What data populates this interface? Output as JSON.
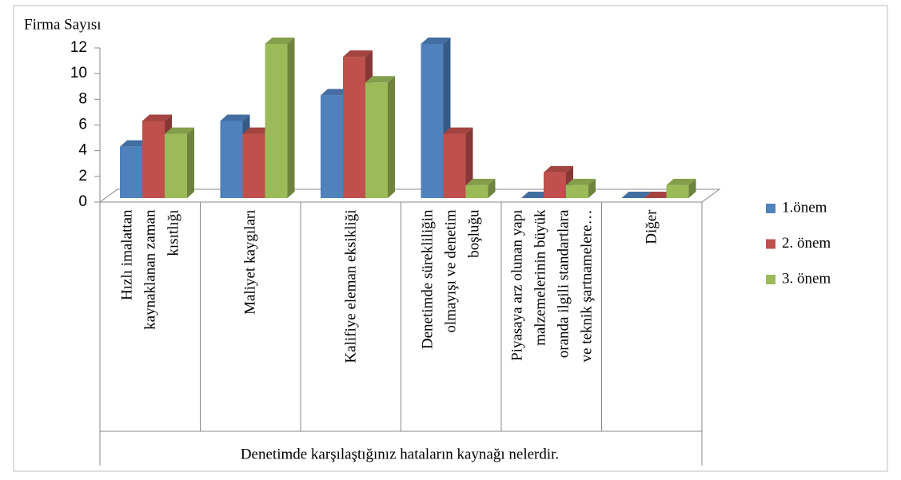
{
  "chart_data": {
    "type": "bar3d",
    "y_axis_title": "Firma Sayısı",
    "x_axis_title": "Denetimde karşılaştığınız hataların kaynağı nelerdir.",
    "categories": [
      "Hızlı imalattan kaynaklanan zaman kısıtlığı",
      "Maliyet kaygıları",
      "Kalifiye eleman eksikliği",
      "Denetimde sürekliliğin olmayışı ve denetim boşluğu",
      "Piyasaya arz olunan yapı malzemelerinin büyük oranda ilgili standartlara ve teknik şartnamelere…",
      "Diğer"
    ],
    "series": [
      {
        "name": "1.önem",
        "color": "#4f81bd",
        "values": [
          4,
          6,
          8,
          12,
          0,
          0
        ]
      },
      {
        "name": "2. önem",
        "color": "#c0504d",
        "values": [
          6,
          5,
          11,
          5,
          2,
          0
        ]
      },
      {
        "name": "3. önem",
        "color": "#9bbb59",
        "values": [
          5,
          12,
          9,
          1,
          1,
          1
        ]
      }
    ],
    "ylim": [
      0,
      12
    ],
    "yticks": [
      0,
      2,
      4,
      6,
      8,
      10,
      12
    ],
    "legend": "right"
  }
}
